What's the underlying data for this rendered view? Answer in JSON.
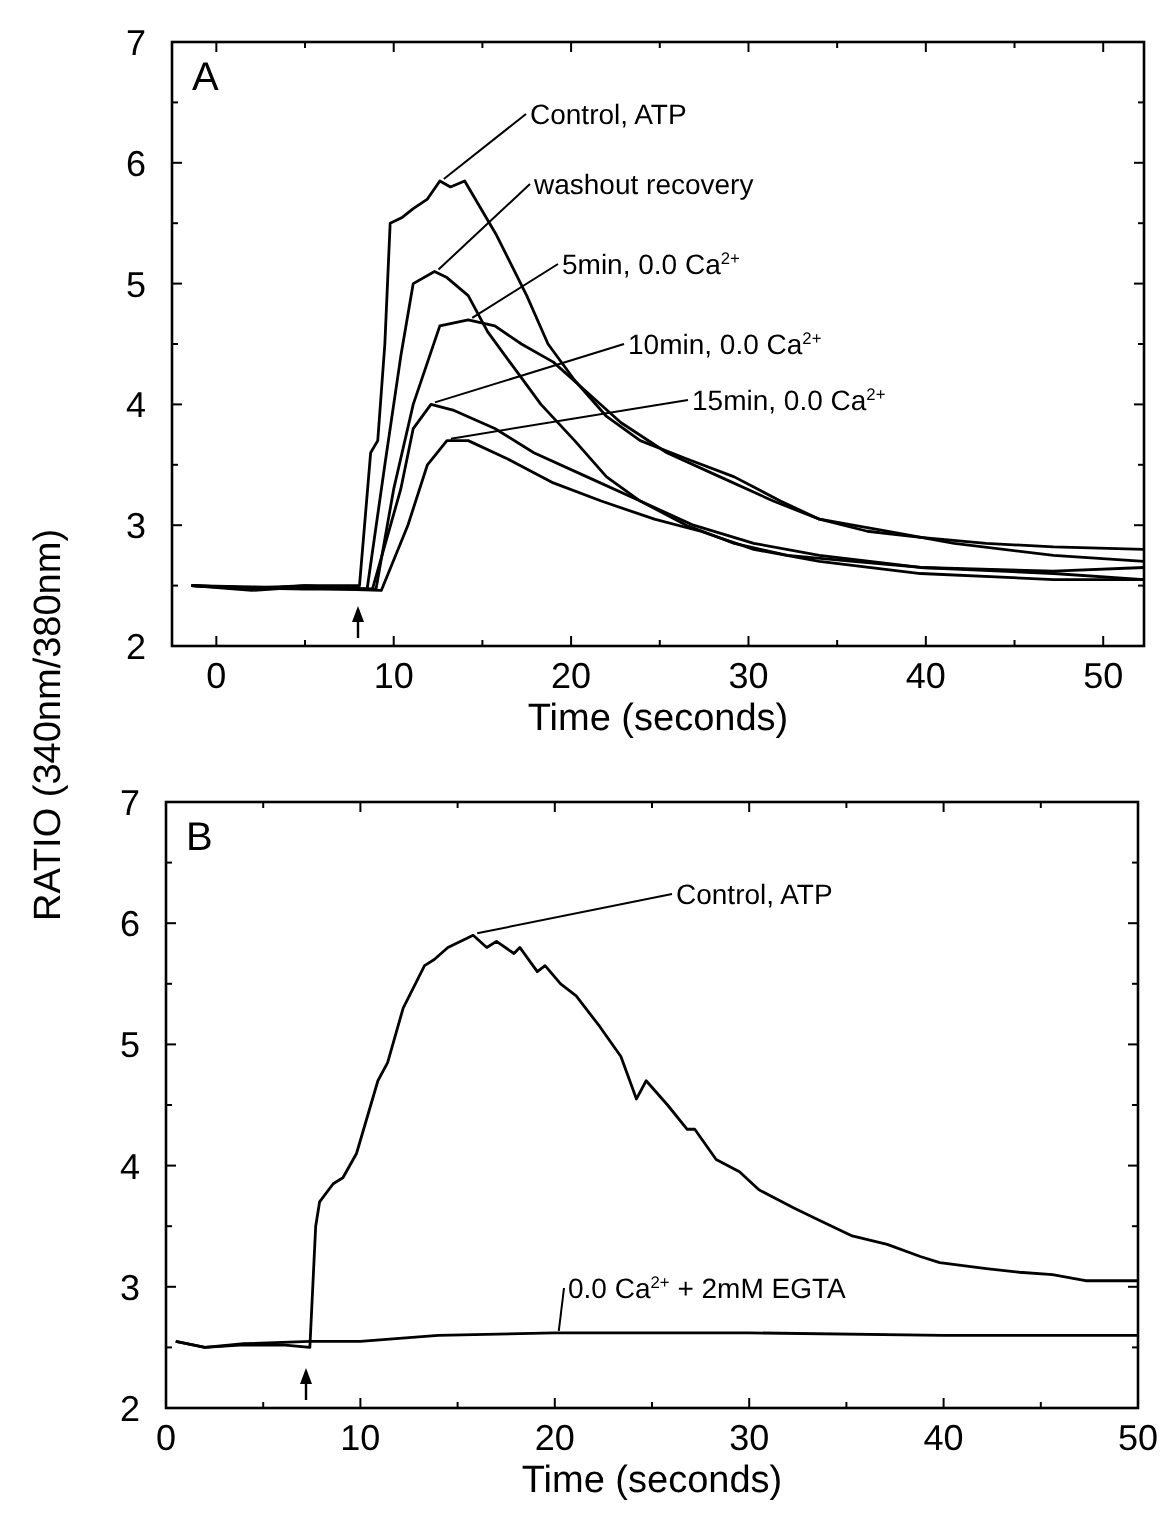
{
  "chart_data": [
    {
      "type": "line",
      "title": "A",
      "xlabel": "Time (seconds)",
      "ylabel": "RATIO (340nm/380nm)",
      "xlim": [
        -2.5,
        52.3
      ],
      "ylim": [
        2,
        7
      ],
      "xticks": [
        0,
        {
          "value": 5,
          "label": null
        },
        10,
        {
          "value": 15,
          "label": null
        },
        20,
        {
          "value": 25,
          "label": null
        },
        30,
        {
          "value": 35,
          "label": null
        },
        40,
        {
          "value": 45,
          "label": null
        },
        50
      ],
      "yticks": [
        2,
        {
          "value": 2.5,
          "label": null
        },
        3,
        {
          "value": 3.5,
          "label": null
        },
        4,
        {
          "value": 4.5,
          "label": null
        },
        5,
        {
          "value": 5.5,
          "label": null
        },
        6,
        {
          "value": 6.5,
          "label": null
        },
        7
      ],
      "grid": false,
      "marker": "none",
      "line_style": "solid",
      "series": [
        {
          "name": "Control, ATP",
          "color": "#000000",
          "x": [
            -1.4,
            2,
            5,
            8.07,
            8.7,
            9.1,
            9.5,
            9.8,
            10.5,
            11.1,
            11.9,
            12.6,
            13.2,
            14,
            15.8,
            17.5,
            18.7,
            20.2,
            22,
            23.9,
            26.5,
            29.2,
            31.8,
            34,
            36.7,
            39.7,
            43.4,
            47.2,
            52.3
          ],
          "values": [
            2.5,
            2.48,
            2.5,
            2.5,
            3.6,
            3.7,
            4.5,
            5.5,
            5.55,
            5.62,
            5.7,
            5.85,
            5.8,
            5.85,
            5.4,
            4.9,
            4.5,
            4.2,
            3.9,
            3.7,
            3.55,
            3.4,
            3.2,
            3.05,
            2.95,
            2.9,
            2.85,
            2.82,
            2.8
          ]
        },
        {
          "name": "washout recovery",
          "color": "#000000",
          "x": [
            -1.4,
            2,
            5,
            8.5,
            9.5,
            10.4,
            11.1,
            12.3,
            13,
            14.2,
            15.3,
            16.8,
            18.3,
            20.2,
            22,
            23.9,
            26.5,
            29.2,
            32.2,
            35.9,
            39.7,
            47.2,
            52.3
          ],
          "values": [
            2.5,
            2.47,
            2.5,
            2.47,
            3.5,
            4.4,
            5,
            5.1,
            5.05,
            4.9,
            4.6,
            4.3,
            4,
            3.7,
            3.4,
            3.2,
            3,
            2.85,
            2.75,
            2.7,
            2.65,
            2.62,
            2.65
          ]
        },
        {
          "name": "5min, 0.0 Ca$^{2+}$",
          "color": "#000000",
          "x": [
            -1.4,
            2,
            5,
            9,
            10,
            11.1,
            12.6,
            14.2,
            15.7,
            17.2,
            19,
            20.9,
            22.8,
            25.4,
            28.4,
            31.4,
            34,
            37.8,
            41.6,
            47.2,
            52.3
          ],
          "values": [
            2.5,
            2.46,
            2.49,
            2.47,
            3.3,
            4,
            4.65,
            4.7,
            4.65,
            4.5,
            4.35,
            4.1,
            3.85,
            3.6,
            3.4,
            3.2,
            3.05,
            2.95,
            2.85,
            2.75,
            2.7
          ]
        },
        {
          "name": "10min, 0.0 Ca$^{2+}$",
          "color": "#000000",
          "x": [
            -1.4,
            2,
            5,
            8.8,
            10.4,
            11.1,
            12.1,
            13.4,
            15.7,
            17.9,
            20.9,
            23.9,
            26.9,
            30.3,
            34,
            39.7,
            47.2,
            52.3
          ],
          "values": [
            2.5,
            2.48,
            2.47,
            2.47,
            3.3,
            3.8,
            4,
            3.95,
            3.8,
            3.6,
            3.4,
            3.2,
            3,
            2.85,
            2.75,
            2.65,
            2.6,
            2.55
          ]
        },
        {
          "name": "15min, 0.0 Ca$^{2+}$",
          "color": "#000000",
          "x": [
            -1.4,
            2,
            5,
            9.3,
            10.8,
            11.9,
            13,
            14.2,
            16.4,
            19,
            21.7,
            24.7,
            27.3,
            30.3,
            34,
            39.7,
            47.2,
            52.3
          ],
          "values": [
            2.5,
            2.49,
            2.48,
            2.46,
            3,
            3.5,
            3.7,
            3.7,
            3.55,
            3.35,
            3.2,
            3.05,
            2.95,
            2.8,
            2.7,
            2.6,
            2.55,
            2.55
          ]
        }
      ]
    },
    {
      "type": "line",
      "title": "B",
      "xlabel": "Time (seconds)",
      "xlim": [
        0,
        50
      ],
      "ylim": [
        2,
        7
      ],
      "xticks": [
        0,
        {
          "value": 5,
          "label": null
        },
        10,
        {
          "value": 15,
          "label": null
        },
        20,
        {
          "value": 25,
          "label": null
        },
        30,
        {
          "value": 35,
          "label": null
        },
        40,
        {
          "value": 45,
          "label": null
        },
        50
      ],
      "yticks": [
        2,
        {
          "value": 2.5,
          "label": null
        },
        3,
        {
          "value": 3.5,
          "label": null
        },
        4,
        {
          "value": 4.5,
          "label": null
        },
        5,
        {
          "value": 5.5,
          "label": null
        },
        6,
        {
          "value": 6.5,
          "label": null
        },
        7
      ],
      "grid": false,
      "marker": "none",
      "line_style": "solid",
      "series": [
        {
          "name": "Control, ATP",
          "color": "#000000",
          "x": [
            0.5,
            2,
            4,
            6,
            7.4,
            7.7,
            7.9,
            8.6,
            9.1,
            9.8,
            10.9,
            11.4,
            12.2,
            13.3,
            13.8,
            14.5,
            15.8,
            16.5,
            17,
            17.9,
            18.2,
            19.1,
            19.5,
            20.3,
            21.1,
            22.3,
            23.4,
            24.2,
            24.7,
            25.8,
            26.8,
            27.2,
            28.3,
            29.5,
            30.5,
            32.3,
            33.6,
            35.3,
            37.1,
            38.8,
            39.8,
            42.2,
            43.9,
            45.6,
            47.3,
            50
          ],
          "values": [
            2.55,
            2.5,
            2.52,
            2.52,
            2.5,
            3.5,
            3.7,
            3.85,
            3.9,
            4.1,
            4.7,
            4.85,
            5.3,
            5.65,
            5.7,
            5.8,
            5.9,
            5.8,
            5.85,
            5.75,
            5.8,
            5.6,
            5.65,
            5.5,
            5.4,
            5.15,
            4.9,
            4.55,
            4.7,
            4.5,
            4.3,
            4.3,
            4.05,
            3.95,
            3.8,
            3.65,
            3.55,
            3.42,
            3.35,
            3.25,
            3.2,
            3.15,
            3.12,
            3.1,
            3.05,
            3.05
          ]
        },
        {
          "name": "0.0 Ca$^{2+}$ + 2mM EGTA",
          "color": "#000000",
          "x": [
            0.5,
            2,
            4,
            7.4,
            10,
            14,
            20,
            30,
            40,
            50
          ],
          "values": [
            2.55,
            2.5,
            2.53,
            2.55,
            2.55,
            2.6,
            2.62,
            2.62,
            2.6,
            2.6
          ]
        }
      ]
    }
  ]
}
